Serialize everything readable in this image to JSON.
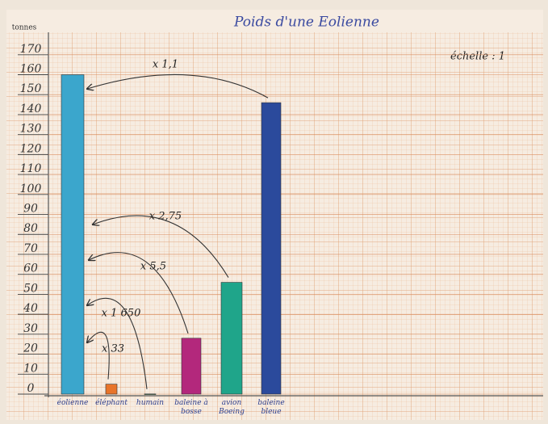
{
  "chart_data": {
    "type": "bar",
    "title": "Poids d'une Eolienne",
    "y_label": "tonnes",
    "scale_note": "échelle : 1",
    "categories": [
      "éolienne",
      "éléphant",
      "humain",
      "baleine à bosse",
      "avion Boeing",
      "baleine bleue"
    ],
    "values": [
      160,
      5,
      0.1,
      28,
      56,
      146
    ],
    "colors": [
      "#3ba6cc",
      "#e8742a",
      "#3f8a3a",
      "#b3287c",
      "#1fa58a",
      "#2b4a9c"
    ],
    "ylim": [
      0,
      178
    ],
    "yticks": [
      0,
      10,
      20,
      30,
      40,
      50,
      60,
      70,
      80,
      90,
      100,
      110,
      120,
      130,
      140,
      150,
      160,
      170
    ],
    "grid": true,
    "annotations": [
      "x 1,1",
      "x 2,75",
      "x 5,5",
      "x 1 650",
      "x 33"
    ]
  }
}
